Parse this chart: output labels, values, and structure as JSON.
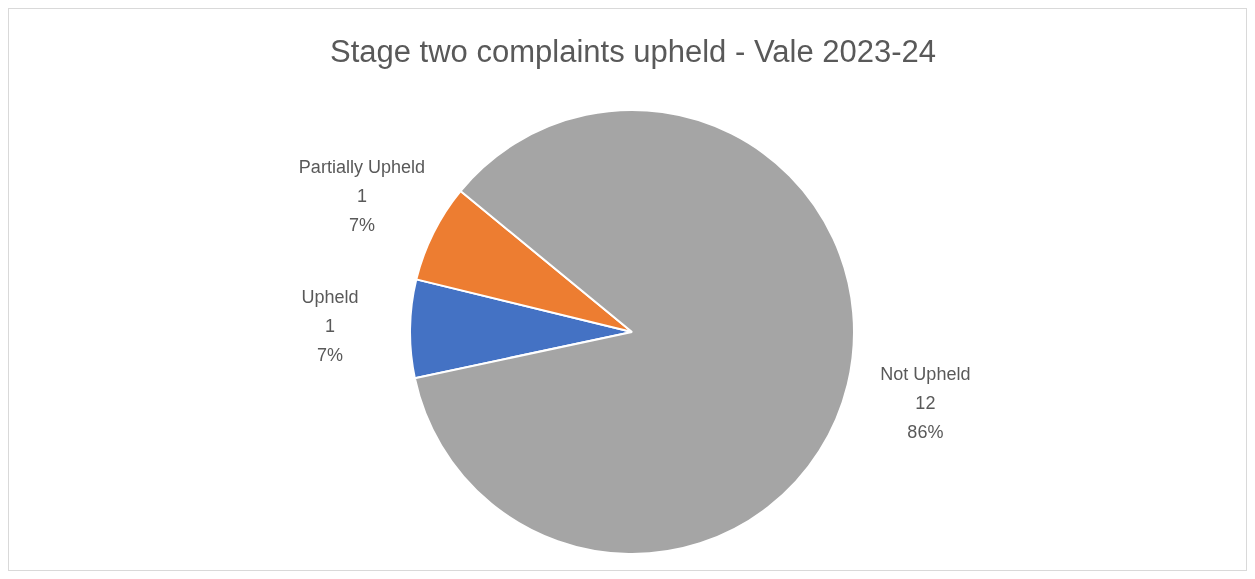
{
  "chart_data": {
    "type": "pie",
    "title": "Stage two complaints upheld - Vale 2023-24",
    "categories": [
      "Upheld",
      "Partially Upheld",
      "Not Upheld"
    ],
    "values": [
      1,
      1,
      12
    ],
    "colors": [
      "#4472c4",
      "#ed7d31",
      "#a5a5a5"
    ],
    "value_labels": [
      "1\n7%",
      "1\n7%",
      "12\n86%"
    ],
    "legend": false
  }
}
